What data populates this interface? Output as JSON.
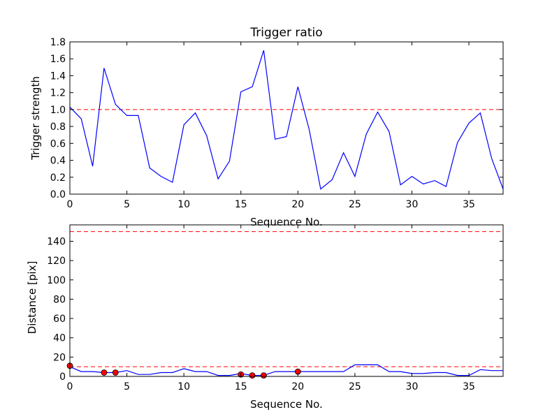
{
  "chart_data": [
    {
      "type": "line",
      "title": "Trigger ratio",
      "xlabel": "Sequence No.",
      "ylabel": "Trigger strength",
      "xlim": [
        0,
        38
      ],
      "ylim": [
        0,
        1.8
      ],
      "xticks": [
        "0",
        "5",
        "10",
        "15",
        "20",
        "25",
        "30",
        "35"
      ],
      "yticks": [
        "0.0",
        "0.2",
        "0.4",
        "0.6",
        "0.8",
        "1.0",
        "1.2",
        "1.4",
        "1.6",
        "1.8"
      ],
      "grid": false,
      "threshold": 1.0,
      "colors": {
        "line": "#0000ff",
        "threshold": "#ff0000"
      },
      "series": [
        {
          "x": [
            0,
            1,
            2,
            3,
            4,
            5,
            6,
            7,
            8,
            9,
            10,
            11,
            12,
            13,
            14,
            15,
            16,
            17,
            18,
            19,
            20,
            21,
            22,
            23,
            24,
            25,
            26,
            27,
            28,
            29,
            30,
            31,
            32,
            33,
            34,
            35,
            36,
            37,
            38
          ],
          "values": [
            1.03,
            0.89,
            0.33,
            1.49,
            1.06,
            0.93,
            0.93,
            0.31,
            0.21,
            0.14,
            0.82,
            0.96,
            0.69,
            0.18,
            0.39,
            1.21,
            1.27,
            1.7,
            0.65,
            0.68,
            1.27,
            0.76,
            0.06,
            0.17,
            0.49,
            0.21,
            0.71,
            0.97,
            0.74,
            0.11,
            0.21,
            0.12,
            0.16,
            0.09,
            0.61,
            0.84,
            0.96,
            0.42,
            0.06
          ]
        }
      ]
    },
    {
      "type": "line",
      "title": "",
      "xlabel": "Sequence No.",
      "ylabel": "Distance [pix]",
      "xlim": [
        0,
        38
      ],
      "ylim": [
        0,
        157
      ],
      "xticks": [
        "0",
        "5",
        "10",
        "15",
        "20",
        "25",
        "30",
        "35"
      ],
      "yticks": [
        "0",
        "20",
        "40",
        "60",
        "80",
        "100",
        "120",
        "140"
      ],
      "grid": false,
      "thresholds": [
        150,
        10
      ],
      "colors": {
        "line": "#0000ff",
        "threshold": "#ff0000",
        "marker": "#ff0000"
      },
      "series": [
        {
          "x": [
            0,
            1,
            2,
            3,
            4,
            5,
            6,
            7,
            8,
            9,
            10,
            11,
            12,
            13,
            14,
            15,
            16,
            17,
            18,
            19,
            20,
            21,
            22,
            23,
            24,
            25,
            26,
            27,
            28,
            29,
            30,
            31,
            32,
            33,
            34,
            35,
            36,
            37,
            38
          ],
          "values": [
            10,
            5,
            5,
            4,
            4,
            6,
            2,
            2,
            4,
            4,
            8,
            5,
            5,
            1,
            1,
            3,
            1,
            1,
            5,
            5,
            5,
            5,
            5,
            5,
            5,
            12,
            12,
            12,
            5,
            5,
            3,
            3,
            4,
            4,
            1,
            1,
            7,
            6,
            6
          ]
        }
      ],
      "markers": {
        "x": [
          0,
          3,
          4,
          15,
          16,
          17,
          20
        ],
        "values": [
          11,
          4,
          4,
          2,
          1,
          1,
          5
        ]
      }
    }
  ]
}
